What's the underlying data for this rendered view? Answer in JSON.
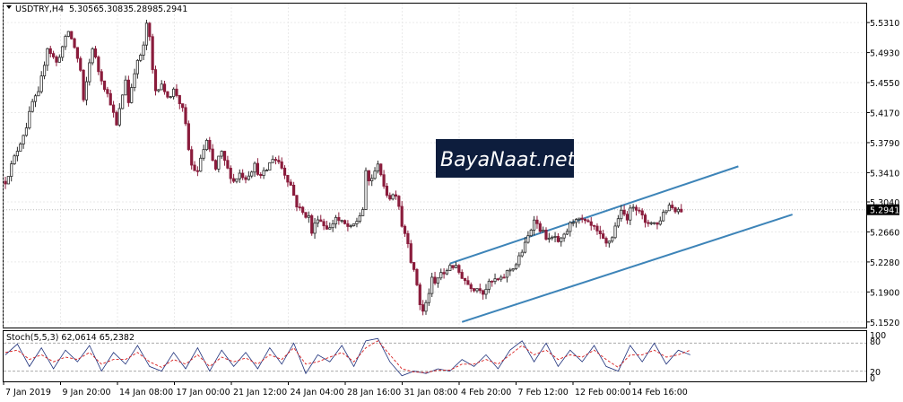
{
  "header": {
    "symbol": "USDTRY,H4",
    "open": "5.3056",
    "high": "5.3083",
    "low": "5.2898",
    "close": "5.2941"
  },
  "stoch": {
    "label": "Stoch(5,5,3) 62,0614 65,2382",
    "levels": [
      "100",
      "80",
      "20",
      "0"
    ]
  },
  "watermark": "BayaNaat.net",
  "current_price_tag": "5.2941",
  "colors": {
    "bull_candle": "#2b2b2b",
    "bear_candle": "#8a1c3c",
    "channel": "#3d84b8",
    "stoch_main": "#1c2f7a",
    "stoch_signal": "#d81e1e",
    "grid": "#eaeaea"
  },
  "chart_data": {
    "type": "candlestick",
    "symbol": "USDTRY",
    "timeframe": "H4",
    "ylim": [
      5.145,
      5.555
    ],
    "yticks": [
      5.531,
      5.493,
      5.455,
      5.417,
      5.379,
      5.341,
      5.304,
      5.266,
      5.228,
      5.19,
      5.152
    ],
    "ytick_labels": [
      "5.5310",
      "5.4930",
      "5.4550",
      "5.4170",
      "5.3790",
      "5.3410",
      "5.3040",
      "5.2660",
      "5.2280",
      "5.1900",
      "5.1520"
    ],
    "xtick_labels": [
      "7 Jan 2019",
      "9 Jan 20:00",
      "14 Jan 08:00",
      "17 Jan 00:00",
      "21 Jan 12:00",
      "24 Jan 04:00",
      "28 Jan 16:00",
      "31 Jan 08:00",
      "4 Feb 20:00",
      "7 Feb 12:00",
      "12 Feb 00:00",
      "14 Feb 16:00"
    ],
    "price_anchors": [
      [
        0,
        5.33
      ],
      [
        3,
        5.36
      ],
      [
        5,
        5.38
      ],
      [
        7,
        5.4
      ],
      [
        9,
        5.43
      ],
      [
        11,
        5.44
      ],
      [
        12,
        5.46
      ],
      [
        14,
        5.5
      ],
      [
        17,
        5.48
      ],
      [
        19,
        5.5
      ],
      [
        21,
        5.52
      ],
      [
        23,
        5.5
      ],
      [
        25,
        5.47
      ],
      [
        26,
        5.43
      ],
      [
        28,
        5.48
      ],
      [
        29,
        5.5
      ],
      [
        31,
        5.47
      ],
      [
        33,
        5.45
      ],
      [
        35,
        5.43
      ],
      [
        37,
        5.4
      ],
      [
        39,
        5.44
      ],
      [
        40,
        5.46
      ],
      [
        41,
        5.43
      ],
      [
        42,
        5.45
      ],
      [
        43,
        5.47
      ],
      [
        44,
        5.48
      ],
      [
        46,
        5.5
      ],
      [
        47,
        5.53
      ],
      [
        48,
        5.51
      ],
      [
        49,
        5.47
      ],
      [
        50,
        5.445
      ],
      [
        52,
        5.455
      ],
      [
        53,
        5.44
      ],
      [
        55,
        5.44
      ],
      [
        56,
        5.445
      ],
      [
        57,
        5.44
      ],
      [
        58,
        5.43
      ],
      [
        59,
        5.42
      ],
      [
        60,
        5.4
      ],
      [
        61,
        5.37
      ],
      [
        62,
        5.35
      ],
      [
        64,
        5.34
      ],
      [
        65,
        5.36
      ],
      [
        67,
        5.38
      ],
      [
        69,
        5.355
      ],
      [
        70,
        5.345
      ],
      [
        71,
        5.36
      ],
      [
        72,
        5.365
      ],
      [
        74,
        5.345
      ],
      [
        76,
        5.33
      ],
      [
        78,
        5.34
      ],
      [
        80,
        5.335
      ],
      [
        83,
        5.35
      ],
      [
        85,
        5.335
      ],
      [
        87,
        5.345
      ],
      [
        89,
        5.36
      ],
      [
        91,
        5.355
      ],
      [
        93,
        5.34
      ],
      [
        95,
        5.325
      ],
      [
        97,
        5.3
      ],
      [
        99,
        5.29
      ],
      [
        101,
        5.285
      ],
      [
        102,
        5.265
      ],
      [
        104,
        5.285
      ],
      [
        106,
        5.275
      ],
      [
        108,
        5.27
      ],
      [
        110,
        5.285
      ],
      [
        111,
        5.28
      ],
      [
        113,
        5.275
      ],
      [
        115,
        5.27
      ],
      [
        117,
        5.28
      ],
      [
        119,
        5.295
      ],
      [
        120,
        5.34
      ],
      [
        121,
        5.33
      ],
      [
        123,
        5.34
      ],
      [
        124,
        5.355
      ],
      [
        125,
        5.34
      ],
      [
        126,
        5.32
      ],
      [
        128,
        5.31
      ],
      [
        130,
        5.315
      ],
      [
        131,
        5.3
      ],
      [
        132,
        5.275
      ],
      [
        134,
        5.255
      ],
      [
        135,
        5.23
      ],
      [
        136,
        5.215
      ],
      [
        137,
        5.2
      ],
      [
        138,
        5.175
      ],
      [
        139,
        5.165
      ],
      [
        140,
        5.175
      ],
      [
        141,
        5.19
      ],
      [
        142,
        5.205
      ],
      [
        143,
        5.2
      ],
      [
        145,
        5.215
      ],
      [
        146,
        5.21
      ],
      [
        148,
        5.225
      ],
      [
        150,
        5.22
      ],
      [
        151,
        5.215
      ],
      [
        152,
        5.21
      ],
      [
        154,
        5.2
      ],
      [
        156,
        5.195
      ],
      [
        158,
        5.195
      ],
      [
        159,
        5.19
      ],
      [
        161,
        5.2
      ],
      [
        163,
        5.205
      ],
      [
        165,
        5.205
      ],
      [
        167,
        5.215
      ],
      [
        170,
        5.225
      ],
      [
        173,
        5.25
      ],
      [
        175,
        5.27
      ],
      [
        176,
        5.285
      ],
      [
        177,
        5.275
      ],
      [
        179,
        5.265
      ],
      [
        181,
        5.255
      ],
      [
        183,
        5.26
      ],
      [
        184,
        5.25
      ],
      [
        186,
        5.26
      ],
      [
        188,
        5.275
      ],
      [
        190,
        5.285
      ],
      [
        191,
        5.28
      ],
      [
        192,
        5.28
      ],
      [
        194,
        5.275
      ],
      [
        196,
        5.27
      ],
      [
        198,
        5.26
      ],
      [
        200,
        5.25
      ],
      [
        202,
        5.26
      ],
      [
        204,
        5.285
      ],
      [
        205,
        5.29
      ],
      [
        207,
        5.285
      ],
      [
        209,
        5.3
      ],
      [
        211,
        5.295
      ],
      [
        213,
        5.275
      ],
      [
        215,
        5.28
      ],
      [
        217,
        5.275
      ],
      [
        219,
        5.29
      ],
      [
        221,
        5.3
      ],
      [
        223,
        5.295
      ],
      [
        225,
        5.2941
      ]
    ],
    "channel": {
      "upper": [
        [
          148,
          5.226
        ],
        [
          244,
          5.349
        ]
      ],
      "lower": [
        [
          152,
          5.152
        ],
        [
          262,
          5.288
        ]
      ]
    },
    "stoch": {
      "ylim": [
        0,
        100
      ],
      "levels": [
        80,
        20
      ],
      "main": [
        [
          0,
          55
        ],
        [
          4,
          78
        ],
        [
          8,
          30
        ],
        [
          12,
          70
        ],
        [
          16,
          25
        ],
        [
          20,
          65
        ],
        [
          24,
          40
        ],
        [
          28,
          75
        ],
        [
          32,
          20
        ],
        [
          36,
          60
        ],
        [
          40,
          35
        ],
        [
          44,
          75
        ],
        [
          48,
          30
        ],
        [
          52,
          20
        ],
        [
          56,
          60
        ],
        [
          60,
          25
        ],
        [
          64,
          70
        ],
        [
          68,
          20
        ],
        [
          72,
          65
        ],
        [
          76,
          30
        ],
        [
          80,
          60
        ],
        [
          84,
          25
        ],
        [
          88,
          70
        ],
        [
          92,
          35
        ],
        [
          96,
          80
        ],
        [
          100,
          15
        ],
        [
          104,
          55
        ],
        [
          108,
          40
        ],
        [
          112,
          75
        ],
        [
          116,
          30
        ],
        [
          120,
          85
        ],
        [
          124,
          90
        ],
        [
          128,
          40
        ],
        [
          132,
          10
        ],
        [
          136,
          20
        ],
        [
          140,
          15
        ],
        [
          144,
          25
        ],
        [
          148,
          20
        ],
        [
          152,
          45
        ],
        [
          156,
          30
        ],
        [
          160,
          55
        ],
        [
          164,
          25
        ],
        [
          168,
          65
        ],
        [
          172,
          85
        ],
        [
          176,
          40
        ],
        [
          180,
          80
        ],
        [
          184,
          30
        ],
        [
          188,
          65
        ],
        [
          192,
          40
        ],
        [
          196,
          75
        ],
        [
          200,
          30
        ],
        [
          204,
          20
        ],
        [
          208,
          75
        ],
        [
          212,
          40
        ],
        [
          216,
          80
        ],
        [
          220,
          35
        ],
        [
          224,
          65
        ],
        [
          228,
          55
        ]
      ],
      "signal": [
        [
          0,
          60
        ],
        [
          4,
          65
        ],
        [
          8,
          45
        ],
        [
          12,
          55
        ],
        [
          16,
          40
        ],
        [
          20,
          50
        ],
        [
          24,
          45
        ],
        [
          28,
          60
        ],
        [
          32,
          35
        ],
        [
          36,
          45
        ],
        [
          40,
          45
        ],
        [
          44,
          60
        ],
        [
          48,
          40
        ],
        [
          52,
          28
        ],
        [
          56,
          45
        ],
        [
          60,
          35
        ],
        [
          64,
          55
        ],
        [
          68,
          30
        ],
        [
          72,
          50
        ],
        [
          76,
          40
        ],
        [
          80,
          48
        ],
        [
          84,
          35
        ],
        [
          88,
          55
        ],
        [
          92,
          45
        ],
        [
          96,
          70
        ],
        [
          100,
          35
        ],
        [
          104,
          40
        ],
        [
          108,
          50
        ],
        [
          112,
          60
        ],
        [
          116,
          40
        ],
        [
          120,
          70
        ],
        [
          124,
          85
        ],
        [
          128,
          55
        ],
        [
          132,
          25
        ],
        [
          136,
          18
        ],
        [
          140,
          17
        ],
        [
          144,
          22
        ],
        [
          148,
          22
        ],
        [
          152,
          35
        ],
        [
          156,
          35
        ],
        [
          160,
          45
        ],
        [
          164,
          35
        ],
        [
          168,
          55
        ],
        [
          172,
          75
        ],
        [
          176,
          55
        ],
        [
          180,
          65
        ],
        [
          184,
          45
        ],
        [
          188,
          55
        ],
        [
          192,
          50
        ],
        [
          196,
          65
        ],
        [
          200,
          45
        ],
        [
          204,
          28
        ],
        [
          208,
          55
        ],
        [
          212,
          55
        ],
        [
          216,
          65
        ],
        [
          220,
          50
        ],
        [
          224,
          55
        ],
        [
          228,
          65
        ]
      ]
    }
  }
}
